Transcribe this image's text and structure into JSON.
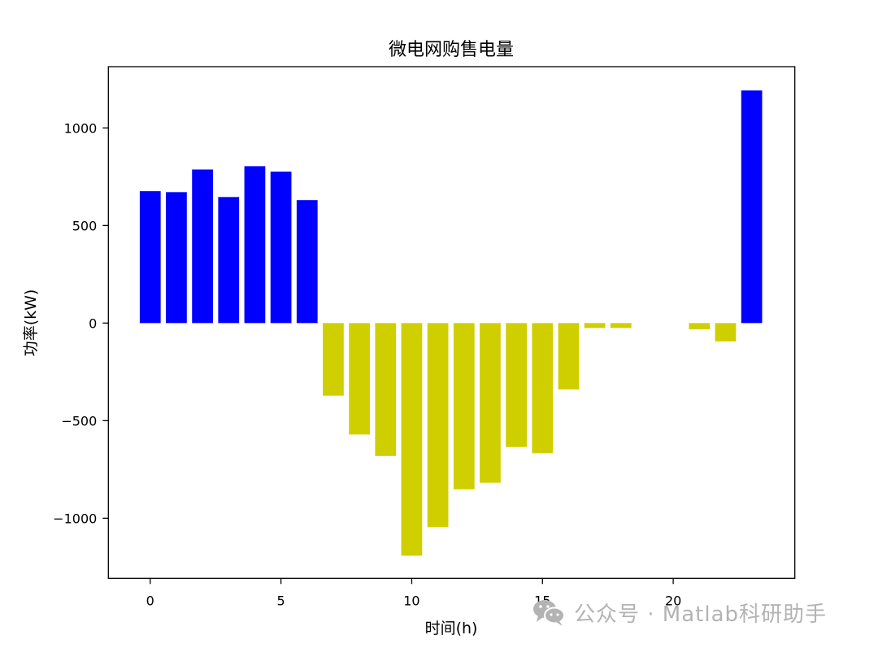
{
  "chart_data": {
    "type": "bar",
    "title": "微电网购售电量",
    "xlabel": "时间(h)",
    "ylabel": "功率(kW)",
    "x": [
      0,
      1,
      2,
      3,
      4,
      5,
      6,
      7,
      8,
      9,
      10,
      11,
      12,
      13,
      14,
      15,
      16,
      17,
      18,
      19,
      20,
      21,
      22,
      23
    ],
    "values": [
      676,
      671,
      787,
      646,
      804,
      776,
      630,
      -372,
      -571,
      -681,
      -1192,
      -1046,
      -852,
      -818,
      -635,
      -667,
      -340,
      -25,
      -25,
      0,
      0,
      -32,
      -94,
      1192
    ],
    "positive_color": "#0000ff",
    "negative_color": "#cfcf00",
    "bar_width": 0.8,
    "xlim": [
      -1.6,
      24.65
    ],
    "ylim": [
      -1308,
      1314
    ],
    "xticks": [
      0,
      5,
      10,
      15,
      20
    ],
    "yticks": [
      -1000,
      -500,
      0,
      500,
      1000
    ],
    "ytick_labels": [
      "−1000",
      "−500",
      "0",
      "500",
      "1000"
    ],
    "grid": false,
    "legend": null
  },
  "watermark": {
    "text": "公众号 · Matlab科研助手",
    "icon": "wechat-icon"
  }
}
